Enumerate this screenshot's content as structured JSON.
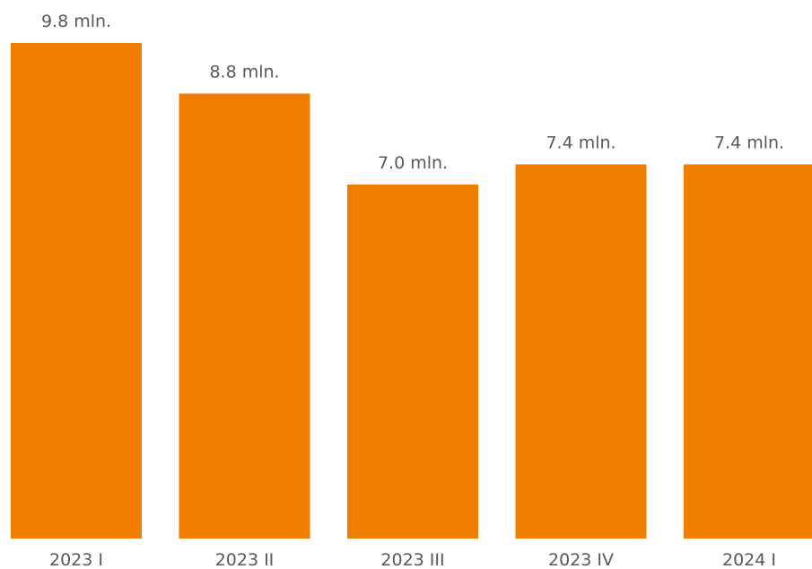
{
  "chart_data": {
    "type": "bar",
    "categories": [
      "2023 I",
      "2023 II",
      "2023 III",
      "2023 IV",
      "2024 I"
    ],
    "values": [
      9.8,
      8.8,
      7.0,
      7.4,
      7.4
    ],
    "data_labels": [
      "9.8 mln.",
      "8.8 mln.",
      "7.0 mln.",
      "7.4 mln.",
      "7.4 mln."
    ],
    "bar_color": "#EF7D00",
    "title": "",
    "xlabel": "",
    "ylabel": "",
    "ylim": [
      0,
      9.8
    ],
    "grid": false,
    "legend": "none"
  }
}
